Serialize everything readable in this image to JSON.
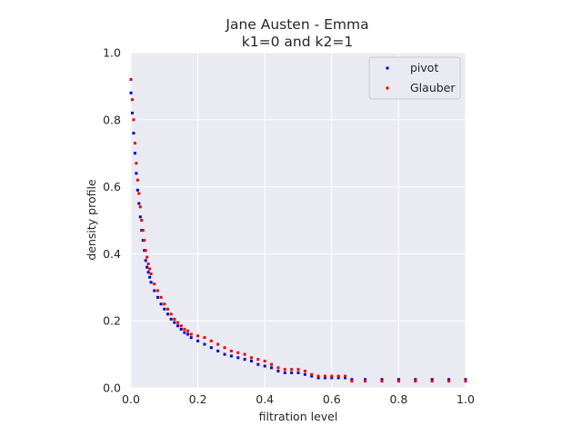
{
  "chart_data": {
    "type": "scatter",
    "title": [
      "Jane Austen - Emma",
      "k1=0 and k2=1"
    ],
    "xlabel": "filtration level",
    "ylabel": "density profile",
    "xlim": [
      0.0,
      1.0
    ],
    "ylim": [
      0.0,
      1.0
    ],
    "xticks": [
      "0.0",
      "0.2",
      "0.4",
      "0.6",
      "0.8",
      "1.0"
    ],
    "yticks": [
      "0.0",
      "0.2",
      "0.4",
      "0.6",
      "0.8",
      "1.0"
    ],
    "grid": true,
    "legend_position": "top-right",
    "series": [
      {
        "name": "pivot",
        "color": "#0000cc",
        "x": [
          0.0,
          0.004,
          0.008,
          0.012,
          0.016,
          0.02,
          0.024,
          0.028,
          0.032,
          0.036,
          0.04,
          0.044,
          0.048,
          0.052,
          0.056,
          0.06,
          0.07,
          0.08,
          0.09,
          0.1,
          0.11,
          0.12,
          0.13,
          0.14,
          0.15,
          0.16,
          0.17,
          0.18,
          0.2,
          0.22,
          0.24,
          0.26,
          0.28,
          0.3,
          0.32,
          0.34,
          0.36,
          0.38,
          0.4,
          0.42,
          0.44,
          0.46,
          0.48,
          0.5,
          0.52,
          0.54,
          0.56,
          0.58,
          0.6,
          0.62,
          0.64,
          0.66,
          0.7,
          0.75,
          0.8,
          0.85,
          0.9,
          0.95,
          1.0
        ],
        "y": [
          0.88,
          0.82,
          0.76,
          0.7,
          0.64,
          0.59,
          0.55,
          0.51,
          0.47,
          0.44,
          0.41,
          0.38,
          0.36,
          0.345,
          0.33,
          0.315,
          0.29,
          0.27,
          0.25,
          0.235,
          0.22,
          0.205,
          0.195,
          0.185,
          0.175,
          0.165,
          0.16,
          0.15,
          0.14,
          0.13,
          0.12,
          0.11,
          0.1,
          0.095,
          0.09,
          0.085,
          0.08,
          0.07,
          0.065,
          0.06,
          0.05,
          0.045,
          0.045,
          0.045,
          0.04,
          0.035,
          0.03,
          0.03,
          0.03,
          0.03,
          0.03,
          0.025,
          0.025,
          0.025,
          0.025,
          0.025,
          0.025,
          0.025,
          0.025
        ]
      },
      {
        "name": "Glauber",
        "color": "#ee0000",
        "x": [
          0.0,
          0.004,
          0.008,
          0.012,
          0.016,
          0.02,
          0.024,
          0.028,
          0.032,
          0.036,
          0.04,
          0.044,
          0.048,
          0.052,
          0.056,
          0.06,
          0.07,
          0.08,
          0.09,
          0.1,
          0.11,
          0.12,
          0.13,
          0.14,
          0.15,
          0.16,
          0.17,
          0.18,
          0.2,
          0.22,
          0.24,
          0.26,
          0.28,
          0.3,
          0.32,
          0.34,
          0.36,
          0.38,
          0.4,
          0.42,
          0.44,
          0.46,
          0.48,
          0.5,
          0.52,
          0.54,
          0.56,
          0.58,
          0.6,
          0.62,
          0.64,
          0.66,
          0.7,
          0.75,
          0.8,
          0.85,
          0.9,
          0.95,
          1.0
        ],
        "y": [
          0.92,
          0.86,
          0.8,
          0.73,
          0.67,
          0.62,
          0.58,
          0.54,
          0.5,
          0.47,
          0.44,
          0.41,
          0.39,
          0.37,
          0.355,
          0.34,
          0.31,
          0.29,
          0.27,
          0.25,
          0.235,
          0.22,
          0.205,
          0.195,
          0.185,
          0.175,
          0.17,
          0.16,
          0.155,
          0.15,
          0.14,
          0.13,
          0.12,
          0.11,
          0.105,
          0.1,
          0.09,
          0.085,
          0.08,
          0.07,
          0.06,
          0.055,
          0.055,
          0.055,
          0.05,
          0.04,
          0.035,
          0.035,
          0.035,
          0.035,
          0.035,
          0.02,
          0.02,
          0.02,
          0.02,
          0.02,
          0.02,
          0.02,
          0.02
        ]
      }
    ]
  }
}
